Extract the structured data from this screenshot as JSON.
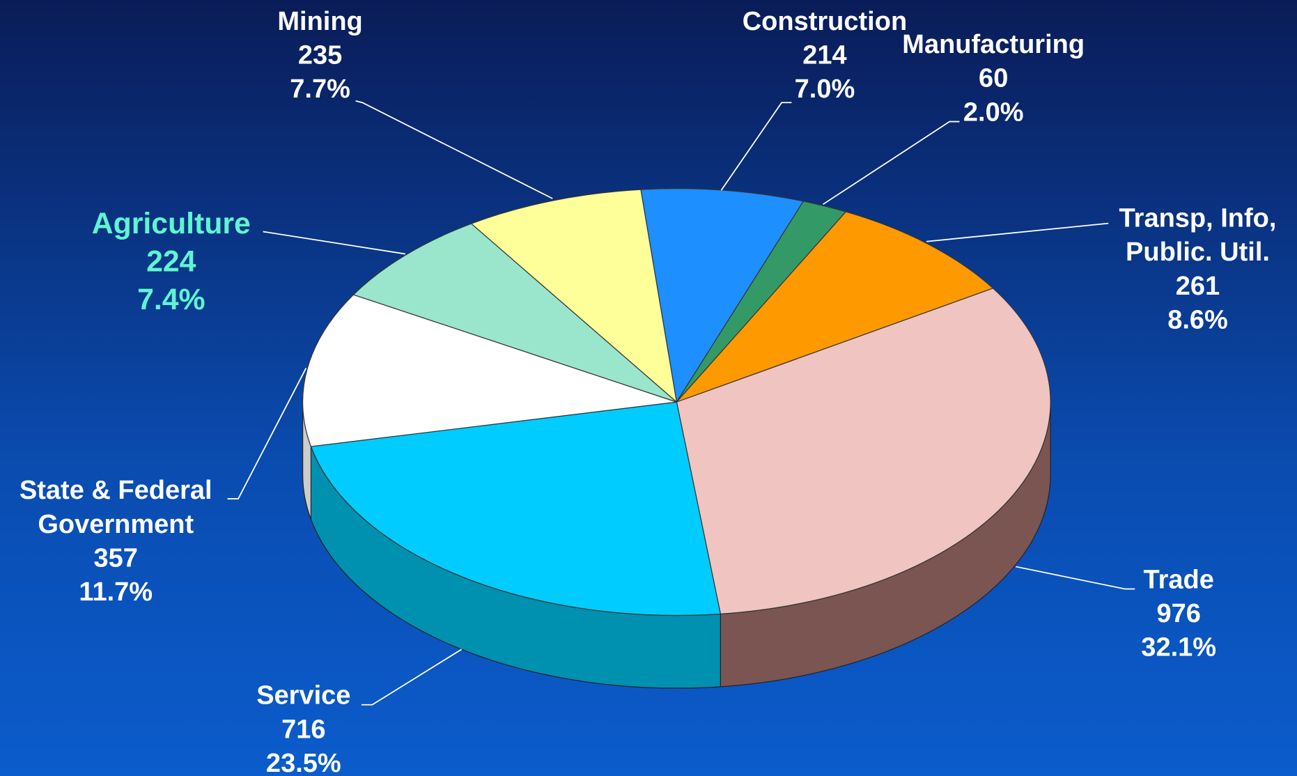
{
  "chart_data": {
    "type": "pie3d",
    "categories": [
      "Construction",
      "Manufacturing",
      "Transp, Info, Public. Util.",
      "Trade",
      "Service",
      "State & Federal Government",
      "Agriculture",
      "Mining"
    ],
    "values": [
      214,
      60,
      261,
      976,
      716,
      357,
      224,
      235
    ],
    "shares": [
      7.0,
      2.0,
      8.6,
      32.1,
      23.5,
      11.7,
      7.4,
      7.7
    ],
    "share_labels": [
      "7.0%",
      "2.0%",
      "8.6%",
      "32.1%",
      "23.5%",
      "11.7%",
      "7.4%",
      "7.7%"
    ],
    "colors": [
      "#1e8fff",
      "#339966",
      "#ff9900",
      "#f0c4c0",
      "#00ccff",
      "#ffffff",
      "#99e6cc",
      "#ffff99"
    ],
    "side_colors": [
      "#1565b8",
      "#226644",
      "#b86e00",
      "#7a5552",
      "#0090b0",
      "#cccccc",
      "#66a890",
      "#b8b86a"
    ],
    "label_colors": [
      "#ffffff",
      "#ffffff",
      "#ffffff",
      "#ffffff",
      "#ffffff",
      "#ffffff",
      "#5ff5d0",
      "#ffffff"
    ]
  }
}
